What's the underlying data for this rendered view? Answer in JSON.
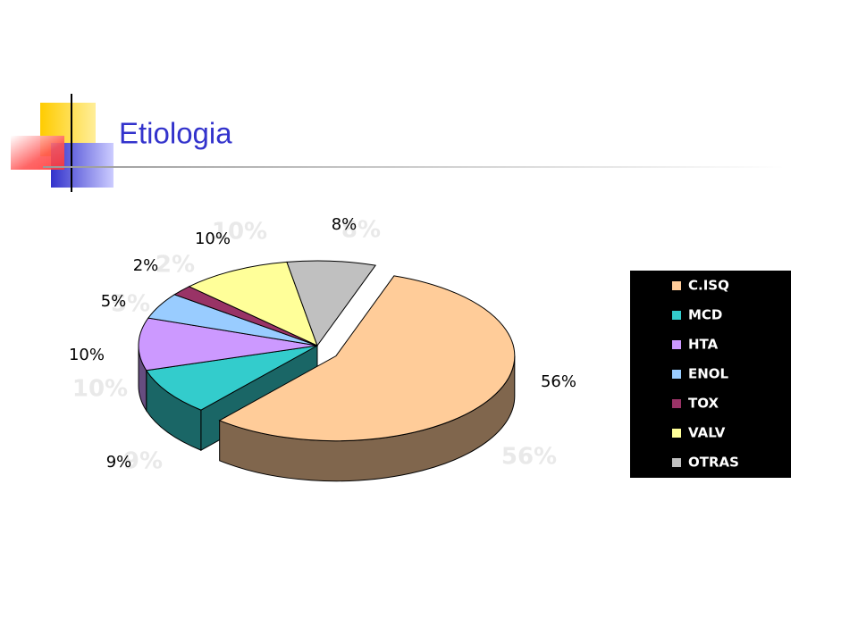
{
  "chart_data": {
    "type": "pie",
    "title": "Etiologia",
    "categories": [
      "C.ISQ",
      "MCD",
      "HTA",
      "ENOL",
      "TOX",
      "VALV",
      "OTRAS"
    ],
    "values": [
      56,
      9,
      10,
      5,
      2,
      10,
      8
    ],
    "value_labels": [
      "56%",
      "9%",
      "10%",
      "5%",
      "2%",
      "10%",
      "8%"
    ],
    "colors": [
      "#ffcc99",
      "#33cccc",
      "#cc99ff",
      "#99ccff",
      "#993366",
      "#ffff99",
      "#c0c0c0"
    ],
    "legend": "right",
    "three_d": true,
    "exploded": [
      0
    ]
  }
}
